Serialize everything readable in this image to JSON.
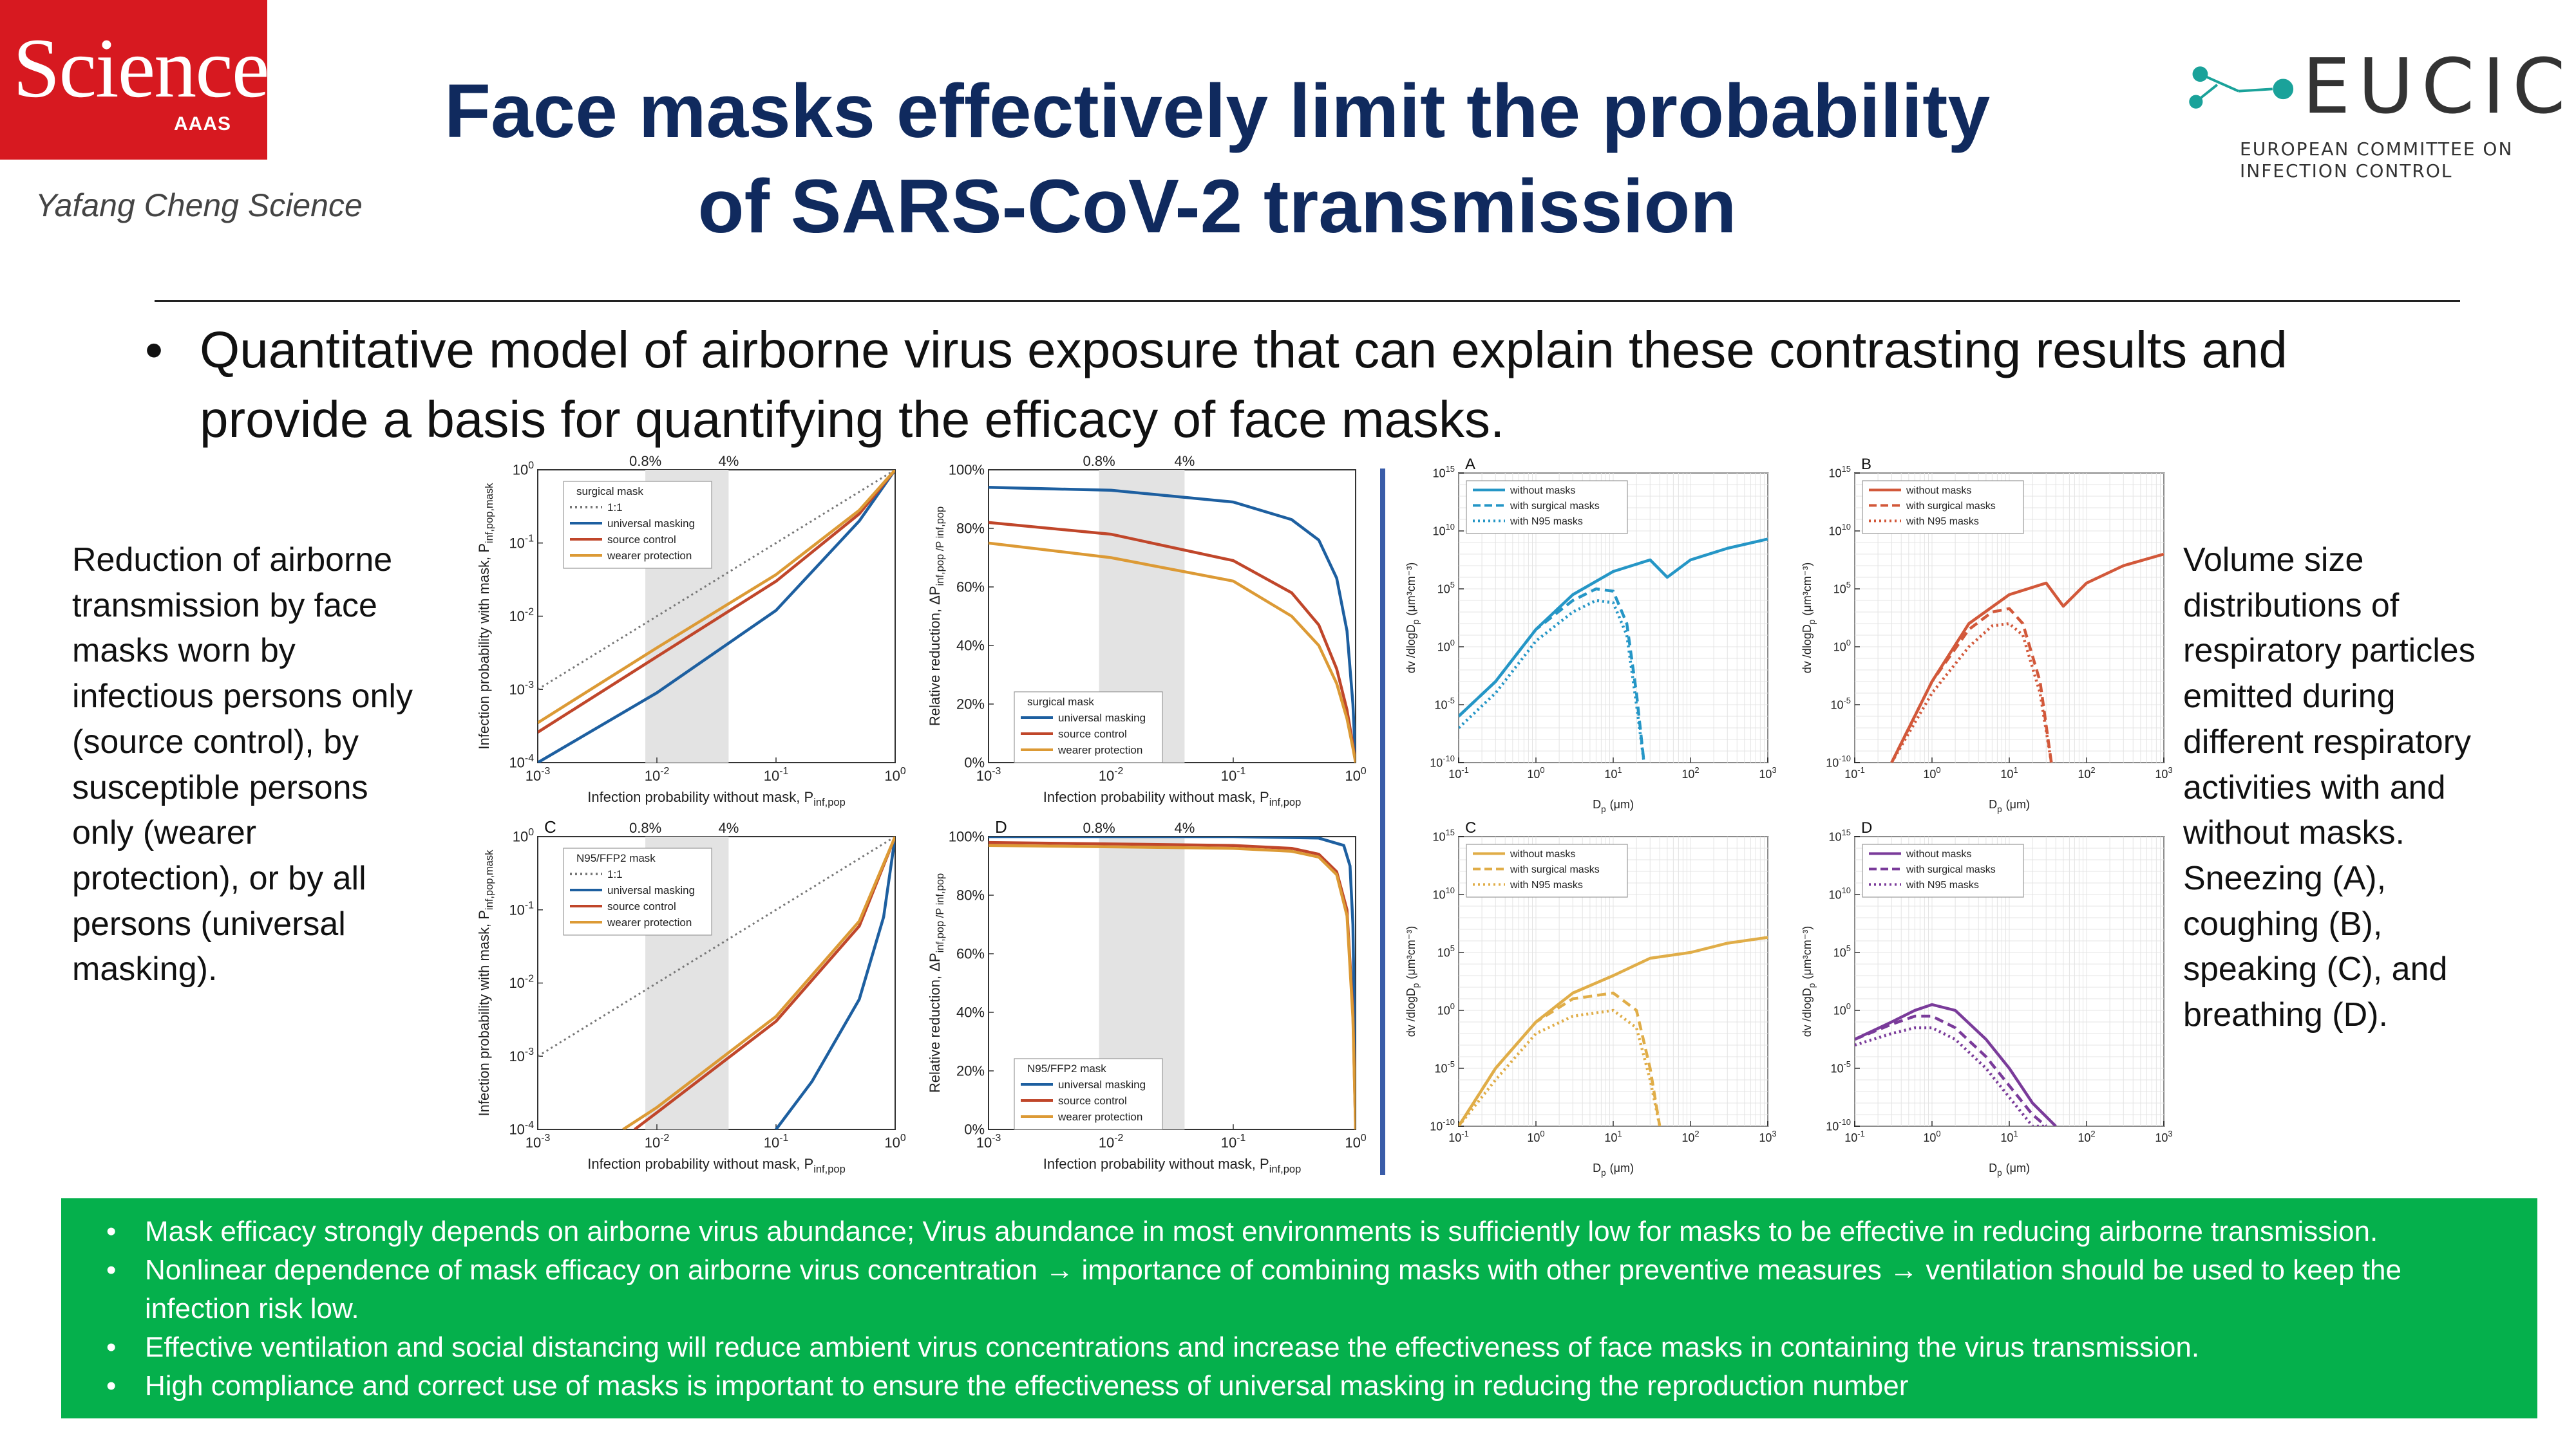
{
  "header": {
    "journal": "Science",
    "journal_sub": "AAAS",
    "author_credit": "Yafang Cheng Science",
    "title_line1": "Face masks effectively limit the probability",
    "title_line2": "of SARS-CoV-2 transmission",
    "partner_name": "EUCIC",
    "partner_sub_line1": "EUROPEAN COMMITTEE ON",
    "partner_sub_line2": "INFECTION CONTROL",
    "colors": {
      "science_red": "#d71920",
      "title_navy": "#102a5e",
      "eucic_teal": "#1aa29a"
    }
  },
  "intro_bullet": "Quantitative model of airborne virus exposure that can explain these contrasting results and provide a basis for quantifying the efficacy of face masks.",
  "left_note": "Reduction of airborne transmission by face masks worn by infectious persons only (source control), by susceptible persons only (wearer protection), or by all persons (universal masking).",
  "right_note": "Volume size distributions of respiratory particles emitted during different respiratory activities with and without masks. Sneezing (A), coughing (B), speaking (C), and breathing (D).",
  "summary_box": {
    "color": "#05b04c",
    "items": [
      "Mask efficacy strongly depends on airborne virus abundance; Virus abundance in most environments is sufficiently low for masks to be effective in reducing airborne transmission.",
      "Nonlinear dependence of mask efficacy on airborne virus concentration → importance of combining masks with other preventive measures → ventilation should be used to keep the infection risk low.",
      "Effective ventilation and social distancing will reduce ambient virus concentrations and increase the effectiveness of face masks in containing the virus transmission.",
      "High compliance and correct use of masks is important to ensure the effectiveness of universal masking in reducing the reproduction number"
    ]
  },
  "chart_data": [
    {
      "id": "prob-surgical",
      "type": "line",
      "panel_letter": "",
      "xlabel": "Infection probability without mask, P",
      "xlabel_sub": "inf,pop",
      "ylabel": "Infection probability with mask, P",
      "ylabel_sub": "inf,pop,mask",
      "x_log": true,
      "y_log": true,
      "xlim": [
        -3,
        0
      ],
      "ylim": [
        -4,
        0
      ],
      "xticks": [
        "10-3",
        "10-2",
        "10-1",
        "100"
      ],
      "yticks": [
        "10-4",
        "10-3",
        "10-2",
        "10-1",
        "100"
      ],
      "shade": [
        0.008,
        0.04
      ],
      "top_labels": [
        "0.8%",
        "4%"
      ],
      "legend_title": "surgical mask",
      "series": [
        {
          "name": "1:1",
          "color": "#777777",
          "dash": "dot",
          "x": [
            0.001,
            1
          ],
          "y": [
            0.001,
            1
          ]
        },
        {
          "name": "universal masking",
          "color": "#1d5fa0",
          "x": [
            0.001,
            0.01,
            0.1,
            0.5,
            1
          ],
          "y": [
            0.0001,
            0.0009,
            0.012,
            0.2,
            1
          ]
        },
        {
          "name": "source control",
          "color": "#c0462a",
          "x": [
            0.001,
            0.01,
            0.1,
            0.5,
            1
          ],
          "y": [
            0.00026,
            0.0028,
            0.03,
            0.25,
            1
          ]
        },
        {
          "name": "wearer protection",
          "color": "#dc9a35",
          "x": [
            0.001,
            0.01,
            0.1,
            0.5,
            1
          ],
          "y": [
            0.00035,
            0.0037,
            0.037,
            0.28,
            1
          ]
        }
      ]
    },
    {
      "id": "reduction-surgical",
      "type": "line",
      "panel_letter": "",
      "xlabel": "Infection probability without mask, P",
      "xlabel_sub": "inf,pop",
      "ylabel": "Relative reduction, ΔP",
      "ylabel_sub": "inf,pop /P inf,pop",
      "x_log": true,
      "y_log": false,
      "xlim": [
        -3,
        0
      ],
      "ylim": [
        0,
        100
      ],
      "xticks": [
        "10-3",
        "10-2",
        "10-1",
        "100"
      ],
      "yticks": [
        "0%",
        "20%",
        "40%",
        "60%",
        "80%",
        "100%"
      ],
      "shade": [
        0.008,
        0.04
      ],
      "top_labels": [
        "0.8%",
        "4%"
      ],
      "legend_title": "surgical mask",
      "series": [
        {
          "name": "universal masking",
          "color": "#1d5fa0",
          "x": [
            0.001,
            0.01,
            0.1,
            0.3,
            0.5,
            0.7,
            0.85,
            0.95,
            1
          ],
          "y": [
            94,
            93,
            89,
            83,
            76,
            63,
            45,
            20,
            0
          ]
        },
        {
          "name": "source control",
          "color": "#c0462a",
          "x": [
            0.001,
            0.01,
            0.1,
            0.3,
            0.5,
            0.7,
            0.85,
            0.95,
            1
          ],
          "y": [
            82,
            78,
            69,
            58,
            47,
            32,
            18,
            6,
            0
          ]
        },
        {
          "name": "wearer protection",
          "color": "#dc9a35",
          "x": [
            0.001,
            0.01,
            0.1,
            0.3,
            0.5,
            0.7,
            0.85,
            0.95,
            1
          ],
          "y": [
            75,
            70,
            62,
            50,
            40,
            27,
            15,
            5,
            0
          ]
        }
      ]
    },
    {
      "id": "prob-n95",
      "type": "line",
      "panel_letter": "C",
      "xlabel": "Infection probability without mask, P",
      "xlabel_sub": "inf,pop",
      "ylabel": "Infection probability with mask, P",
      "ylabel_sub": "inf,pop,mask",
      "x_log": true,
      "y_log": true,
      "xlim": [
        -3,
        0
      ],
      "ylim": [
        -4,
        0
      ],
      "xticks": [
        "10-3",
        "10-2",
        "10-1",
        "100"
      ],
      "yticks": [
        "10-4",
        "10-3",
        "10-2",
        "10-1",
        "100"
      ],
      "shade": [
        0.008,
        0.04
      ],
      "top_labels": [
        "0.8%",
        "4%"
      ],
      "legend_title": "N95/FFP2 mask",
      "series": [
        {
          "name": "1:1",
          "color": "#777777",
          "dash": "dot",
          "x": [
            0.001,
            1
          ],
          "y": [
            0.001,
            1
          ]
        },
        {
          "name": "universal masking",
          "color": "#1d5fa0",
          "x": [
            0.1,
            0.2,
            0.5,
            0.8,
            1
          ],
          "y": [
            0.0001,
            0.00045,
            0.006,
            0.08,
            1
          ]
        },
        {
          "name": "source control",
          "color": "#c0462a",
          "x": [
            0.0065,
            0.01,
            0.1,
            0.5,
            1
          ],
          "y": [
            0.0001,
            0.00017,
            0.003,
            0.06,
            1
          ]
        },
        {
          "name": "wearer protection",
          "color": "#dc9a35",
          "x": [
            0.0052,
            0.01,
            0.1,
            0.5,
            1
          ],
          "y": [
            0.0001,
            0.0002,
            0.0035,
            0.07,
            1
          ]
        }
      ]
    },
    {
      "id": "reduction-n95",
      "type": "line",
      "panel_letter": "D",
      "xlabel": "Infection probability without mask, P",
      "xlabel_sub": "inf,pop",
      "ylabel": "Relative reduction, ΔP",
      "ylabel_sub": "inf,pop /P inf,pop",
      "x_log": true,
      "y_log": false,
      "xlim": [
        -3,
        0
      ],
      "ylim": [
        0,
        100
      ],
      "xticks": [
        "10-3",
        "10-2",
        "10-1",
        "100"
      ],
      "yticks": [
        "0%",
        "20%",
        "40%",
        "60%",
        "80%",
        "100%"
      ],
      "shade": [
        0.008,
        0.04
      ],
      "top_labels": [
        "0.8%",
        "4%"
      ],
      "legend_title": "N95/FFP2 mask",
      "series": [
        {
          "name": "universal masking",
          "color": "#1d5fa0",
          "x": [
            0.001,
            0.1,
            0.5,
            0.8,
            0.9,
            0.95,
            0.98,
            1
          ],
          "y": [
            100,
            100,
            99.5,
            97,
            90,
            70,
            35,
            0
          ]
        },
        {
          "name": "source control",
          "color": "#c0462a",
          "x": [
            0.001,
            0.01,
            0.1,
            0.3,
            0.5,
            0.7,
            0.85,
            0.95,
            1
          ],
          "y": [
            98,
            97.5,
            97,
            96,
            94,
            88,
            75,
            40,
            0
          ]
        },
        {
          "name": "wearer protection",
          "color": "#dc9a35",
          "x": [
            0.001,
            0.01,
            0.1,
            0.3,
            0.5,
            0.7,
            0.85,
            0.95,
            1
          ],
          "y": [
            97,
            96.5,
            96,
            95,
            93,
            87,
            73,
            38,
            0
          ]
        }
      ]
    },
    {
      "id": "size-sneezing",
      "type": "line",
      "panel_letter": "A",
      "xlabel": "D",
      "xlabel_sub": "p",
      "xlabel_tail": "(μm)",
      "ylabel": "dv /dlogD",
      "ylabel_sub": "p",
      "ylabel_tail": "(μm³cm⁻³)",
      "x_log": true,
      "y_log": true,
      "xlim": [
        -1,
        3
      ],
      "ylim": [
        -10,
        15
      ],
      "xticks": [
        "10-1",
        "100",
        "101",
        "102",
        "103"
      ],
      "yticks": [
        "10-10",
        "10-5",
        "100",
        "105",
        "1010",
        "1015"
      ],
      "series": [
        {
          "name": "without masks",
          "color": "#2596c6",
          "x": [
            0.1,
            0.3,
            1,
            3,
            10,
            30,
            50,
            100,
            300,
            1000
          ],
          "y": [
            -6,
            -3,
            1.5,
            4.5,
            6.5,
            7.5,
            6,
            7.5,
            8.5,
            9.3
          ]
        },
        {
          "name": "with surgical masks",
          "color": "#2596c6",
          "dash": "dash",
          "x": [
            0.1,
            0.3,
            1,
            3,
            6,
            10,
            15,
            20,
            25
          ],
          "y": [
            -6,
            -3,
            1.5,
            4,
            5,
            4.8,
            2,
            -4,
            -10
          ]
        },
        {
          "name": "with N95 masks",
          "color": "#2596c6",
          "dash": "dot",
          "x": [
            0.1,
            0.3,
            1,
            3,
            6,
            10,
            15,
            20,
            25
          ],
          "y": [
            -7,
            -4,
            0.5,
            3,
            4,
            3.8,
            1,
            -5,
            -10
          ]
        }
      ]
    },
    {
      "id": "size-coughing",
      "type": "line",
      "panel_letter": "B",
      "xlabel": "D",
      "xlabel_sub": "p",
      "xlabel_tail": "(μm)",
      "ylabel": "dv /dlogD",
      "ylabel_sub": "p",
      "ylabel_tail": "(μm³cm⁻³)",
      "x_log": true,
      "y_log": true,
      "xlim": [
        -1,
        3
      ],
      "ylim": [
        -10,
        15
      ],
      "xticks": [
        "10-1",
        "100",
        "101",
        "102",
        "103"
      ],
      "yticks": [
        "10-10",
        "10-5",
        "100",
        "105",
        "1010",
        "1015"
      ],
      "series": [
        {
          "name": "without masks",
          "color": "#d2583a",
          "x": [
            0.3,
            1,
            3,
            10,
            30,
            50,
            100,
            300,
            1000
          ],
          "y": [
            -10,
            -3,
            2,
            4.5,
            5.5,
            3.5,
            5.5,
            7,
            8
          ]
        },
        {
          "name": "with surgical masks",
          "color": "#d2583a",
          "dash": "dash",
          "x": [
            0.3,
            1,
            3,
            6,
            10,
            15,
            25,
            35
          ],
          "y": [
            -10,
            -3,
            1.5,
            3,
            3.3,
            2,
            -3,
            -10
          ]
        },
        {
          "name": "with N95 masks",
          "color": "#d2583a",
          "dash": "dot",
          "x": [
            0.3,
            1,
            3,
            6,
            10,
            15,
            25,
            35
          ],
          "y": [
            -10,
            -4,
            0,
            1.8,
            2,
            1,
            -4,
            -10
          ]
        }
      ]
    },
    {
      "id": "size-speaking",
      "type": "line",
      "panel_letter": "C",
      "xlabel": "D",
      "xlabel_sub": "p",
      "xlabel_tail": "(μm)",
      "ylabel": "dv /dlogD",
      "ylabel_sub": "p",
      "ylabel_tail": "(μm³cm⁻³)",
      "x_log": true,
      "y_log": true,
      "xlim": [
        -1,
        3
      ],
      "ylim": [
        -10,
        15
      ],
      "xticks": [
        "10-1",
        "100",
        "101",
        "102",
        "103"
      ],
      "yticks": [
        "10-10",
        "10-5",
        "100",
        "105",
        "1010",
        "1015"
      ],
      "series": [
        {
          "name": "without masks",
          "color": "#e0ad48",
          "x": [
            0.1,
            0.3,
            1,
            3,
            10,
            30,
            100,
            300,
            1000
          ],
          "y": [
            -10,
            -5,
            -1,
            1.5,
            3,
            4.5,
            5,
            5.8,
            6.3
          ]
        },
        {
          "name": "with surgical masks",
          "color": "#e0ad48",
          "dash": "dash",
          "x": [
            0.1,
            0.3,
            1,
            3,
            10,
            20,
            30,
            40
          ],
          "y": [
            -10,
            -5,
            -1,
            1,
            1.5,
            0,
            -5,
            -10
          ]
        },
        {
          "name": "with N95 masks",
          "color": "#e0ad48",
          "dash": "dot",
          "x": [
            0.1,
            0.3,
            1,
            3,
            10,
            20,
            30,
            40
          ],
          "y": [
            -10,
            -6,
            -2,
            -0.5,
            0,
            -1.5,
            -6,
            -10
          ]
        }
      ]
    },
    {
      "id": "size-breathing",
      "type": "line",
      "panel_letter": "D",
      "xlabel": "D",
      "xlabel_sub": "p",
      "xlabel_tail": "(μm)",
      "ylabel": "dv /dlogD",
      "ylabel_sub": "p",
      "ylabel_tail": "(μm³cm⁻³)",
      "x_log": true,
      "y_log": true,
      "xlim": [
        -1,
        3
      ],
      "ylim": [
        -10,
        15
      ],
      "xticks": [
        "10-1",
        "100",
        "101",
        "102",
        "103"
      ],
      "yticks": [
        "10-10",
        "10-5",
        "100",
        "105",
        "1010",
        "1015"
      ],
      "series": [
        {
          "name": "without masks",
          "color": "#7a3b9a",
          "x": [
            0.1,
            0.3,
            0.6,
            1,
            2,
            5,
            10,
            20,
            40
          ],
          "y": [
            -2.5,
            -1,
            0,
            0.5,
            0,
            -2.5,
            -5,
            -8,
            -10
          ]
        },
        {
          "name": "with surgical masks",
          "color": "#7a3b9a",
          "dash": "dash",
          "x": [
            0.1,
            0.3,
            0.6,
            1,
            2,
            5,
            10,
            20,
            30
          ],
          "y": [
            -2.5,
            -1.2,
            -0.5,
            -0.5,
            -1.5,
            -4,
            -6.5,
            -9,
            -10
          ]
        },
        {
          "name": "with N95 masks",
          "color": "#7a3b9a",
          "dash": "dot",
          "x": [
            0.1,
            0.3,
            0.6,
            1,
            2,
            5,
            10,
            20,
            30
          ],
          "y": [
            -3,
            -2,
            -1.5,
            -1.5,
            -2.5,
            -5,
            -7.5,
            -10,
            -10
          ]
        }
      ]
    }
  ]
}
